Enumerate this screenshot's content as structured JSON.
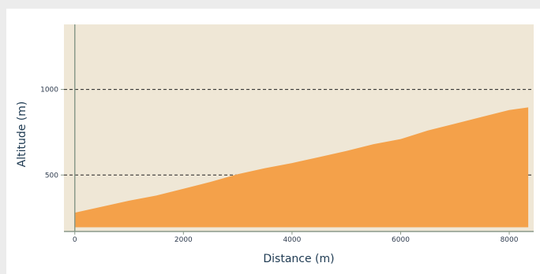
{
  "chart_data": {
    "type": "area",
    "xlabel": "Distance (m)",
    "ylabel": "Altitude (m)",
    "xlim": [
      -200,
      8450
    ],
    "ylim": [
      170,
      1380
    ],
    "x_ticks": [
      0,
      2000,
      4000,
      6000,
      8000
    ],
    "x_tick_labels": [
      "0",
      "2000",
      "4000",
      "6000",
      "8000"
    ],
    "y_ticks": [
      500,
      1000
    ],
    "y_tick_labels": [
      "500",
      "1000"
    ],
    "grid": "horizontal dashed at y ticks",
    "colors": {
      "plot_background": "#efe7d6",
      "area_fill": "#f4a14a",
      "axis": "#8a9a8a",
      "gridline": "#222222"
    },
    "series": [
      {
        "baseline": 195,
        "x": [
          0,
          500,
          1000,
          1500,
          2000,
          2500,
          3000,
          3500,
          4000,
          4500,
          5000,
          5500,
          6000,
          6500,
          7000,
          7500,
          8000,
          8350
        ],
        "y": [
          280,
          315,
          350,
          380,
          420,
          460,
          505,
          540,
          570,
          605,
          640,
          680,
          710,
          760,
          800,
          840,
          880,
          895
        ]
      }
    ]
  }
}
